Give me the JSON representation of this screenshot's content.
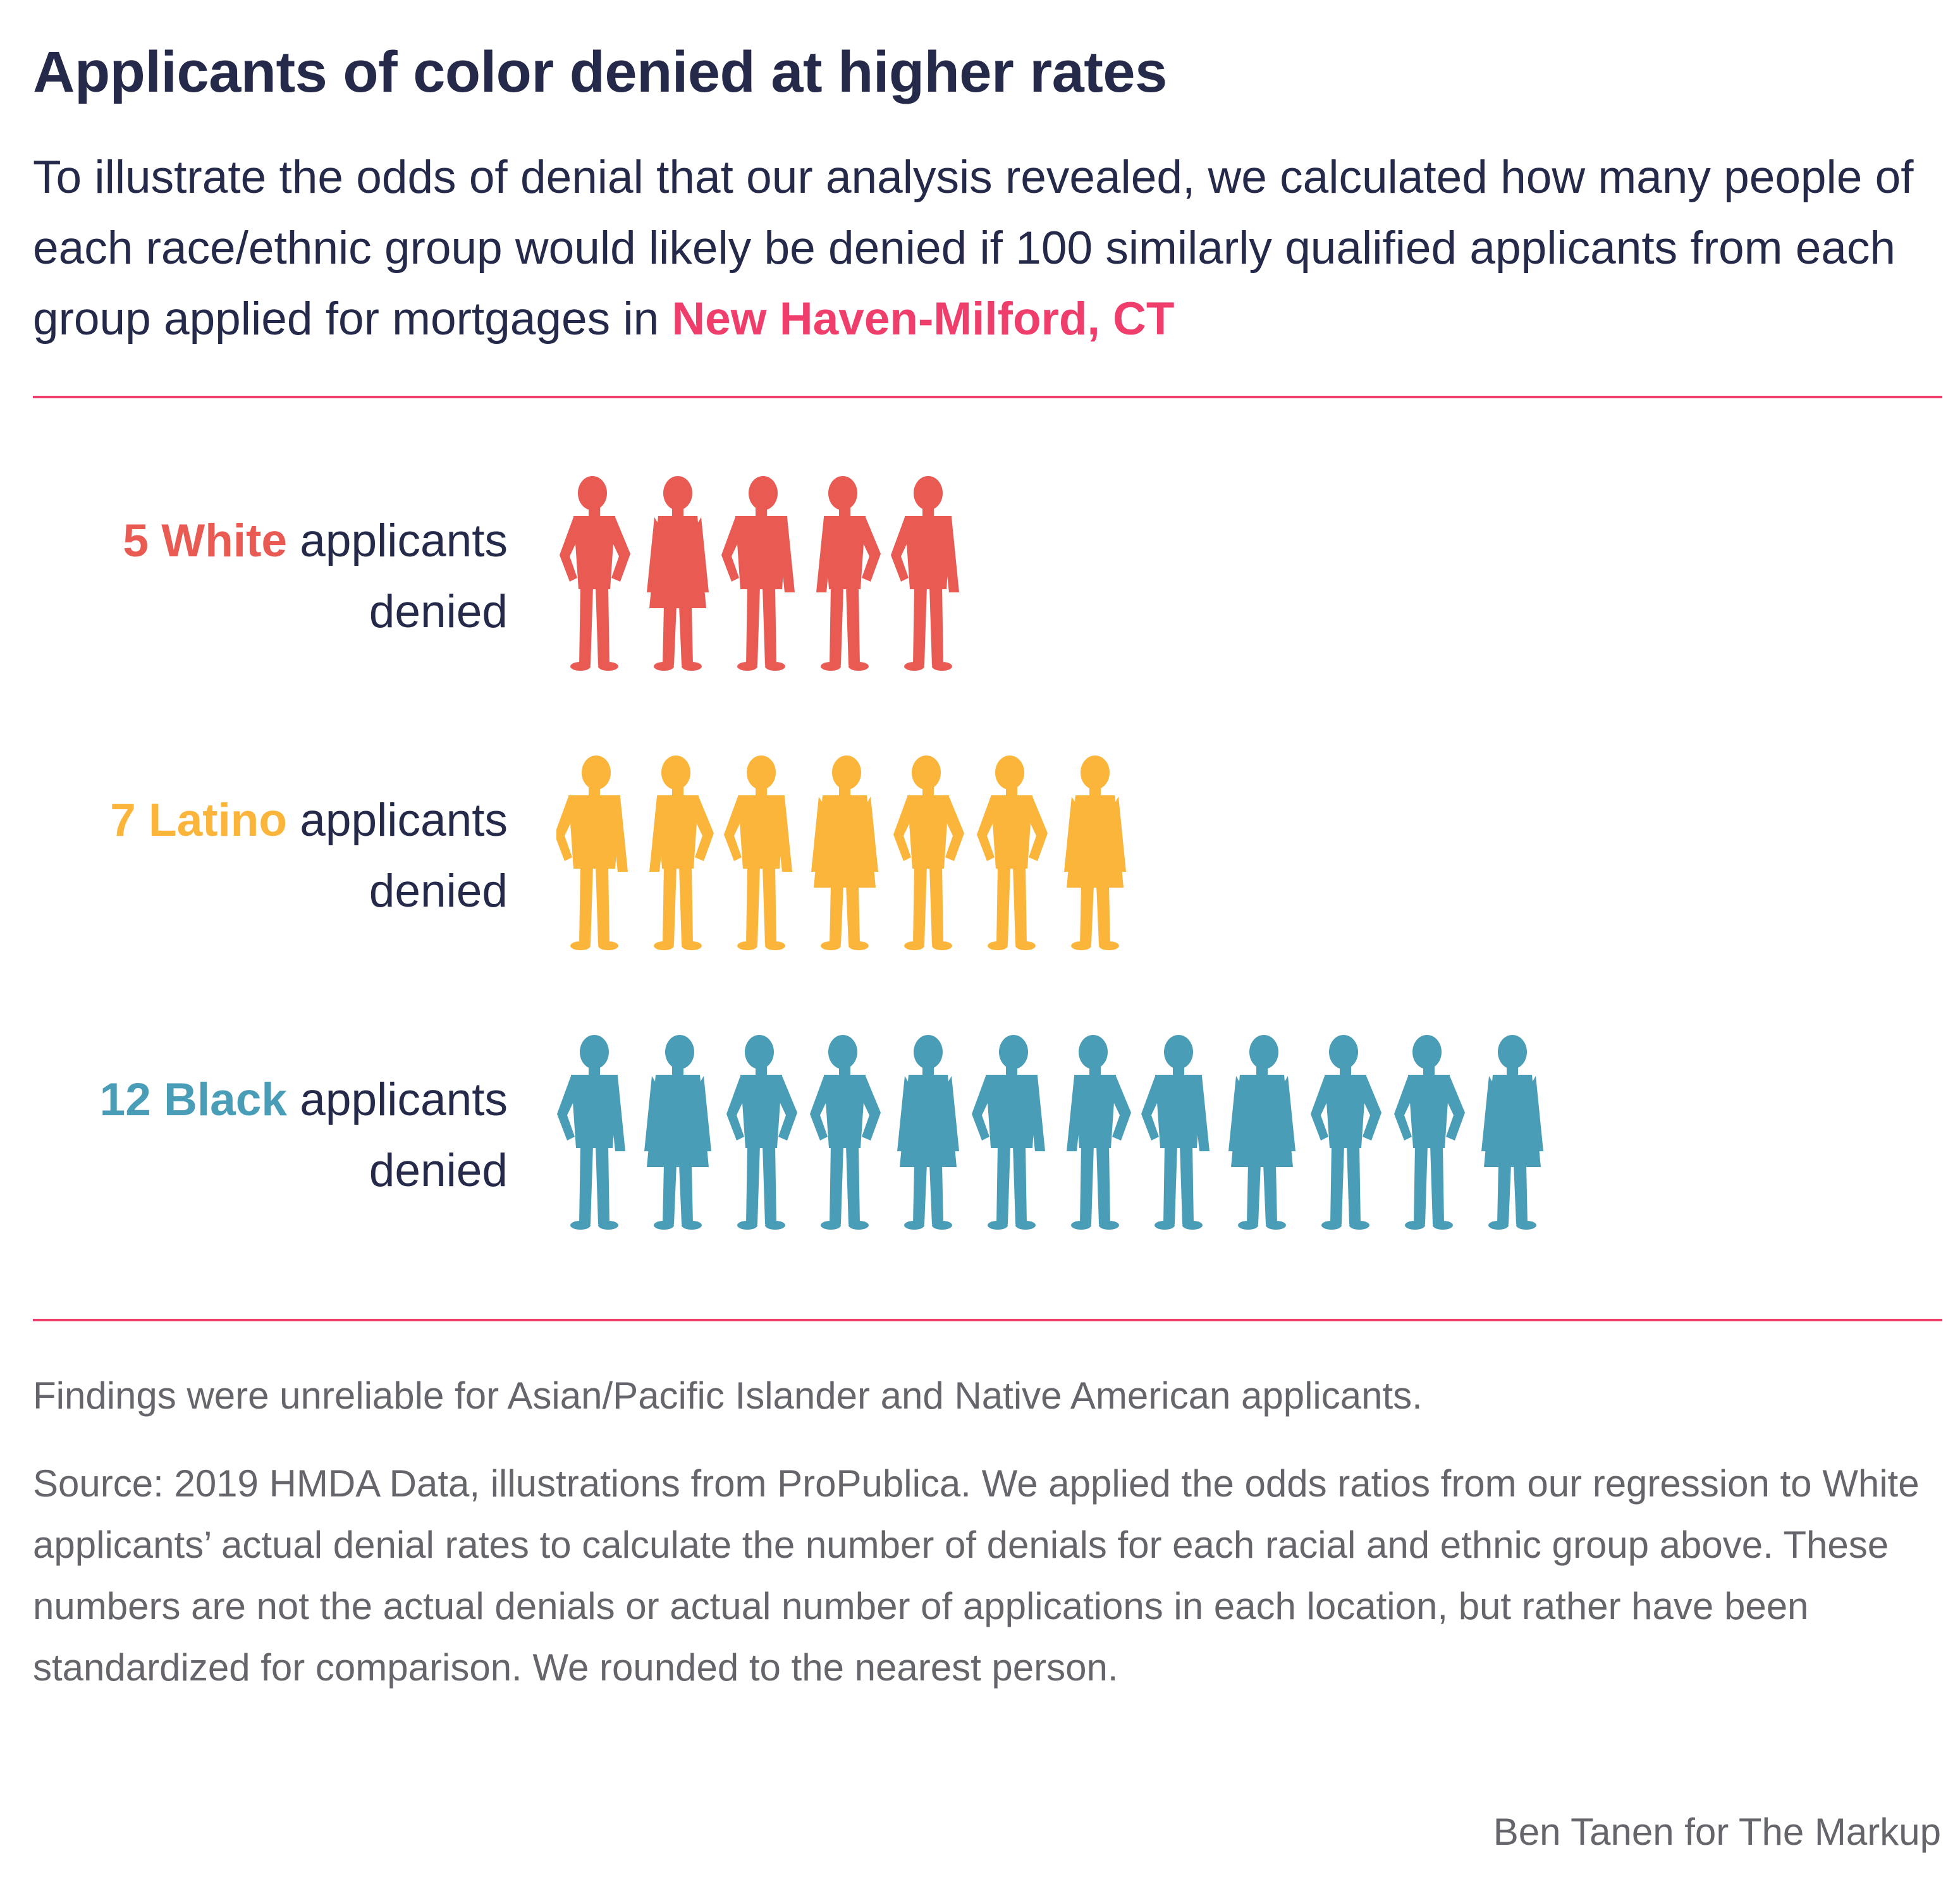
{
  "title": "Applicants of color denied at higher rates",
  "subtitle": {
    "text": "To illustrate the odds of denial that our analysis revealed, we calculated how many people of each race/ethnic group would likely be denied if 100 similarly qualified applicants from each group applied for mortgages in",
    "location": "New Haven-Milford, CT",
    "location_color": "#ef3e6b"
  },
  "rule_color": "#ef3e6b",
  "chart_data": {
    "type": "bar",
    "categories": [
      "White",
      "Latino",
      "Black"
    ],
    "values": [
      5,
      7,
      12
    ],
    "unit": "applicants denied per 100 similarly qualified applicants",
    "colors": [
      "#e85a52",
      "#fbb53a",
      "#4a9db7"
    ],
    "rows": [
      {
        "count": "5",
        "group": "White",
        "text1": "applicants",
        "text2": "denied",
        "color": "#e85a52"
      },
      {
        "count": "7",
        "group": "Latino",
        "text1": "applicants",
        "text2": "denied",
        "color": "#fbb53a"
      },
      {
        "count": "12",
        "group": "Black",
        "text1": "applicants",
        "text2": "denied",
        "color": "#4a9db7"
      }
    ],
    "icon": "person-silhouette-icon"
  },
  "note": "Findings were unreliable for Asian/Pacific Islander and Native American applicants.",
  "source": "Source: 2019 HMDA Data, illustrations from ProPublica. We applied the odds ratios from our regression to White applicants’ actual denial rates to calculate the number of denials for each racial and ethnic group above. These numbers are not the actual denials or actual number of applications in each location, but rather have been standardized for comparison. We rounded to the nearest person.",
  "credit": "Ben Tanen for The Markup"
}
